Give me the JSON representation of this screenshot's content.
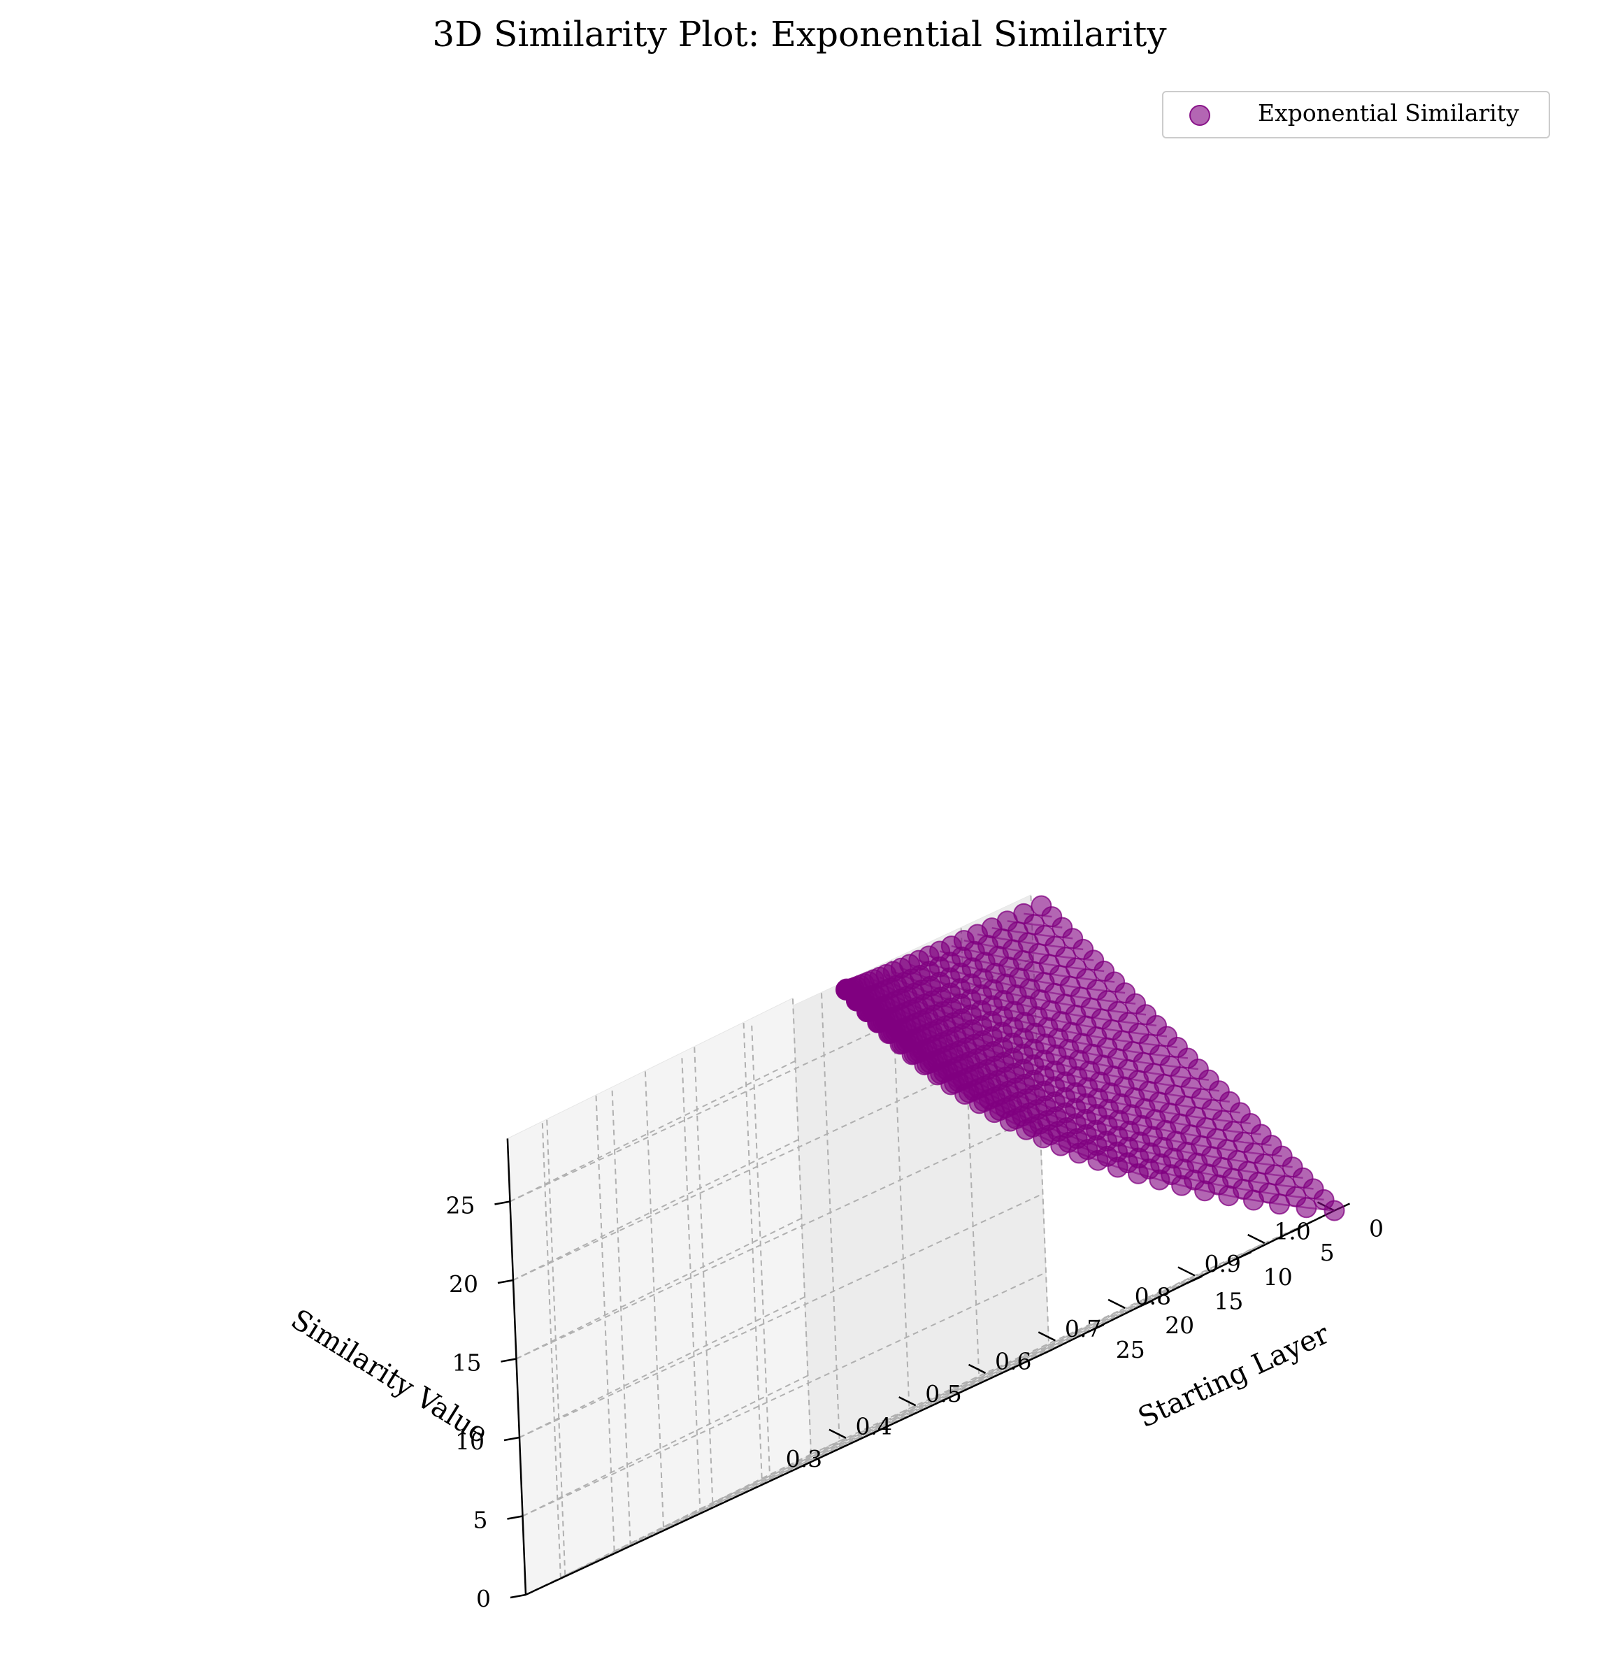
{
  "chart_data": {
    "type": "scatter",
    "title": "3D Similarity Plot: Exponential Similarity",
    "xlabel": "Starting Layer",
    "ylabel": "Similarity Value",
    "zlabel": "",
    "xlim": [
      0,
      29
    ],
    "ylim": [
      0.25,
      1.0
    ],
    "zlim": [
      0,
      29
    ],
    "x_ticks": [
      "0",
      "5",
      "10",
      "15",
      "20",
      "25"
    ],
    "y_ticks": [
      "0.3",
      "0.4",
      "0.5",
      "0.6",
      "0.7",
      "0.8",
      "0.9",
      "1.0"
    ],
    "z_ticks": [
      "0",
      "5",
      "10",
      "15",
      "20",
      "25"
    ],
    "grid": true,
    "legend": {
      "position": "top-right",
      "entries": [
        "Exponential Similarity"
      ]
    },
    "series": [
      {
        "name": "Exponential Similarity",
        "color": "#800080",
        "description_of_points": "For every starting layer i (0-28) and ending layer j >= i (up to 28), similarity = exp(-0.04 * (j - i)); points of the same starting layer are connected by lines."
      }
    ]
  }
}
